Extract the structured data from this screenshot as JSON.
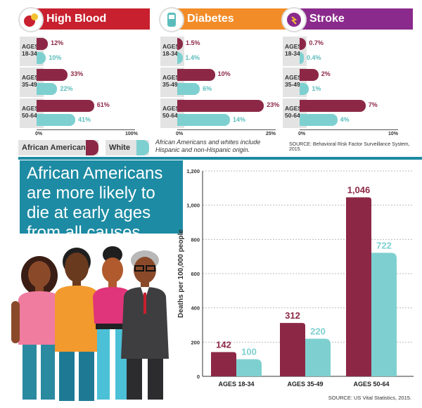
{
  "panels": [
    {
      "title": "High Blood Pressure",
      "color": "#c8202e",
      "icon": "blood-pressure-icon",
      "axis": [
        "0%",
        "100%"
      ],
      "max": 100,
      "rows": [
        {
          "age": [
            "AGES",
            "18-34"
          ],
          "aa": 12,
          "w": 10,
          "aa_label": "12%",
          "w_label": "10%"
        },
        {
          "age": [
            "AGES",
            "35-49"
          ],
          "aa": 33,
          "w": 22,
          "aa_label": "33%",
          "w_label": "22%"
        },
        {
          "age": [
            "AGES",
            "50-64"
          ],
          "aa": 61,
          "w": 41,
          "aa_label": "61%",
          "w_label": "41%"
        }
      ]
    },
    {
      "title": "Diabetes",
      "color": "#f28c28",
      "icon": "glucose-meter-icon",
      "axis": [
        "0%",
        "25%"
      ],
      "max": 25,
      "rows": [
        {
          "age": [
            "AGES",
            "18-34"
          ],
          "aa": 1.5,
          "w": 1.4,
          "aa_label": "1.5%",
          "w_label": "1.4%"
        },
        {
          "age": [
            "AGES",
            "35-49"
          ],
          "aa": 10,
          "w": 6,
          "aa_label": "10%",
          "w_label": "6%"
        },
        {
          "age": [
            "AGES",
            "50-64"
          ],
          "aa": 23,
          "w": 14,
          "aa_label": "23%",
          "w_label": "14%"
        }
      ]
    },
    {
      "title": "Stroke",
      "color": "#8a2a8c",
      "icon": "brain-head-icon",
      "axis": [
        "0%",
        "10%"
      ],
      "max": 10,
      "rows": [
        {
          "age": [
            "AGES",
            "18-34"
          ],
          "aa": 0.7,
          "w": 0.4,
          "aa_label": "0.7%",
          "w_label": "0.4%"
        },
        {
          "age": [
            "AGES",
            "35-49"
          ],
          "aa": 2,
          "w": 1,
          "aa_label": "2%",
          "w_label": "1%"
        },
        {
          "age": [
            "AGES",
            "50-64"
          ],
          "aa": 7,
          "w": 4,
          "aa_label": "7%",
          "w_label": "4%"
        }
      ]
    }
  ],
  "legend": {
    "african_american": "African American",
    "white": "White"
  },
  "note": "African Americans and whites include Hispanic and non-Hispanic origin.",
  "source_top": "SOURCE: Behavioral Risk Factor Surveillance System, 2015.",
  "headline": "African Americans are more likely to die at early ages from all causes.",
  "source_bottom": "SOURCE: US Vital Statistics, 2015.",
  "colors": {
    "african_american": "#8c2846",
    "white": "#7ed0d0",
    "banner": "#1d8ba3"
  },
  "chart_data": [
    {
      "type": "bar",
      "title": "High Blood Pressure",
      "categories": [
        "AGES 18-34",
        "AGES 35-49",
        "AGES 50-64"
      ],
      "series": [
        {
          "name": "African American",
          "values": [
            12,
            33,
            61
          ]
        },
        {
          "name": "White",
          "values": [
            10,
            22,
            41
          ]
        }
      ],
      "xlim": [
        0,
        100
      ]
    },
    {
      "type": "bar",
      "title": "Diabetes",
      "categories": [
        "AGES 18-34",
        "AGES 35-49",
        "AGES 50-64"
      ],
      "series": [
        {
          "name": "African American",
          "values": [
            1.5,
            10,
            23
          ]
        },
        {
          "name": "White",
          "values": [
            1.4,
            6,
            14
          ]
        }
      ],
      "xlim": [
        0,
        25
      ]
    },
    {
      "type": "bar",
      "title": "Stroke",
      "categories": [
        "AGES 18-34",
        "AGES 35-49",
        "AGES 50-64"
      ],
      "series": [
        {
          "name": "African American",
          "values": [
            0.7,
            2,
            7
          ]
        },
        {
          "name": "White",
          "values": [
            0.4,
            1,
            4
          ]
        }
      ],
      "xlim": [
        0,
        10
      ]
    },
    {
      "type": "bar",
      "title": "",
      "ylabel": "Deaths per 100,000 people",
      "categories": [
        "AGES 18-34",
        "AGES 35-49",
        "AGES 50-64"
      ],
      "series": [
        {
          "name": "African American",
          "values": [
            142,
            312,
            1046
          ],
          "labels": [
            "142",
            "312",
            "1,046"
          ]
        },
        {
          "name": "White",
          "values": [
            100,
            220,
            722
          ],
          "labels": [
            "100",
            "220",
            "722"
          ]
        }
      ],
      "ylim": [
        0,
        1200
      ],
      "yticks": [
        "0",
        "200",
        "400",
        "600",
        "800",
        "1,000",
        "1,200"
      ],
      "grid": true
    }
  ]
}
